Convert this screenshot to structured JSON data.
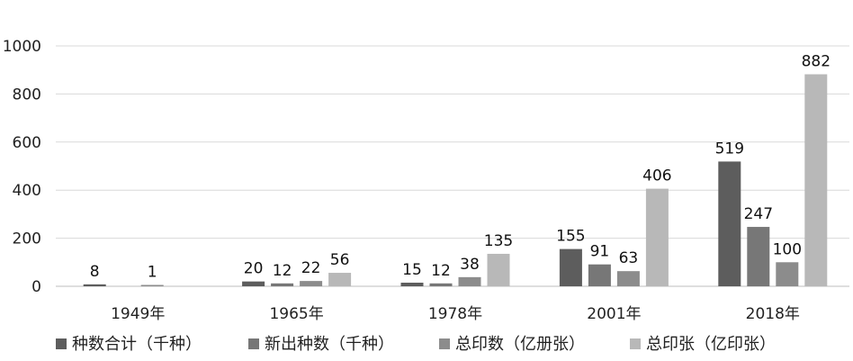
{
  "chart_data": {
    "type": "bar",
    "categories": [
      "1949年",
      "1965年",
      "1978年",
      "2001年",
      "2018年"
    ],
    "series": [
      {
        "name": "种数合计（千种）",
        "values": [
          8,
          20,
          15,
          155,
          519
        ],
        "color": "#5d5d5d"
      },
      {
        "name": "新出种数（千种）",
        "values": [
          null,
          12,
          12,
          91,
          247
        ],
        "color": "#777777"
      },
      {
        "name": "总印数（亿册张）",
        "values": [
          1,
          22,
          38,
          63,
          100
        ],
        "color": "#8c8c8c"
      },
      {
        "name": "总印张（亿印张）",
        "values": [
          null,
          56,
          135,
          406,
          882
        ],
        "color": "#b8b8b8"
      }
    ],
    "y_ticks": [
      0,
      200,
      400,
      600,
      800,
      1000
    ],
    "ylim": [
      0,
      1000
    ],
    "grid": true,
    "legend_position": "bottom"
  }
}
